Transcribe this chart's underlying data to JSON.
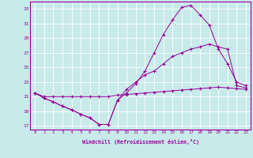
{
  "xlabel": "Windchill (Refroidissement éolien,°C)",
  "xlim": [
    -0.5,
    23.5
  ],
  "ylim": [
    16.5,
    34.0
  ],
  "yticks": [
    17,
    19,
    21,
    23,
    25,
    27,
    29,
    31,
    33
  ],
  "xticks": [
    0,
    1,
    2,
    3,
    4,
    5,
    6,
    7,
    8,
    9,
    10,
    11,
    12,
    13,
    14,
    15,
    16,
    17,
    18,
    19,
    20,
    21,
    22,
    23
  ],
  "bg_color": "#c8eaea",
  "line_color": "#990099",
  "grid_color": "#ffffff",
  "lines": [
    {
      "x": [
        0,
        1,
        2,
        3,
        4,
        5,
        6,
        7,
        8,
        9,
        10,
        11,
        12,
        13,
        14,
        15,
        16,
        17,
        18,
        19,
        20,
        21,
        22,
        23
      ],
      "y": [
        21.5,
        20.8,
        20.3,
        19.7,
        19.2,
        18.6,
        18.1,
        17.2,
        17.2,
        20.5,
        21.5,
        22.8,
        24.5,
        27.0,
        29.5,
        31.5,
        33.2,
        33.5,
        32.2,
        30.8,
        27.5,
        25.5,
        23.0,
        22.5
      ]
    },
    {
      "x": [
        0,
        1,
        2,
        3,
        4,
        5,
        6,
        7,
        8,
        9,
        10,
        11,
        12,
        13,
        14,
        15,
        16,
        17,
        18,
        19,
        20,
        21,
        22,
        23
      ],
      "y": [
        21.5,
        20.8,
        20.3,
        19.7,
        19.2,
        18.6,
        18.1,
        17.2,
        17.2,
        20.5,
        22.0,
        23.0,
        24.0,
        24.5,
        25.5,
        26.5,
        27.0,
        27.5,
        27.8,
        28.2,
        27.8,
        27.5,
        22.5,
        22.2
      ]
    },
    {
      "x": [
        0,
        1,
        2,
        3,
        4,
        5,
        6,
        7,
        8,
        9,
        10,
        11,
        12,
        13,
        14,
        15,
        16,
        17,
        18,
        19,
        20,
        21,
        22,
        23
      ],
      "y": [
        21.5,
        21.0,
        21.0,
        21.0,
        21.0,
        21.0,
        21.0,
        21.0,
        21.0,
        21.2,
        21.3,
        21.4,
        21.5,
        21.6,
        21.7,
        21.8,
        21.9,
        22.0,
        22.1,
        22.2,
        22.3,
        22.2,
        22.1,
        22.0
      ]
    }
  ]
}
